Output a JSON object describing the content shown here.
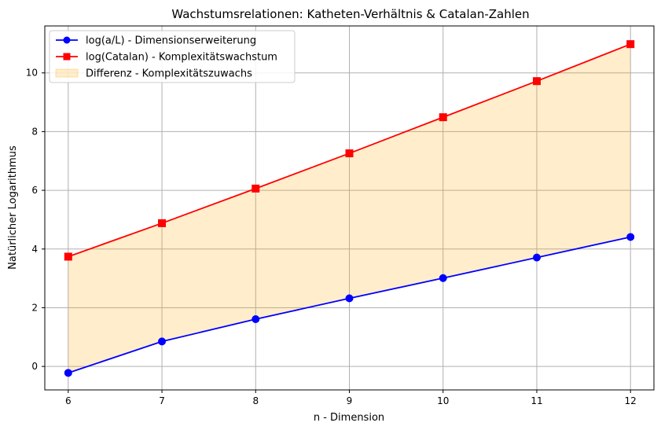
{
  "chart_data": {
    "type": "line",
    "title": "Wachstumsrelationen: Katheten-Verhältnis & Catalan-Zahlen",
    "xlabel": "n - Dimension",
    "ylabel": "Natürlicher Logarithmus",
    "x": [
      6,
      7,
      8,
      9,
      10,
      11,
      12
    ],
    "xlim": [
      5.75,
      12.25
    ],
    "ylim": [
      -0.8,
      11.6
    ],
    "xticks": [
      6,
      7,
      8,
      9,
      10,
      11,
      12
    ],
    "yticks": [
      0,
      2,
      4,
      6,
      8,
      10
    ],
    "grid": true,
    "legend_position": "top-left",
    "series": [
      {
        "name": "log(a/L) - Dimensionserweiterung",
        "color": "#0000ff",
        "marker": "circle",
        "values": [
          -0.22,
          0.85,
          1.61,
          2.32,
          3.01,
          3.71,
          4.41
        ]
      },
      {
        "name": "log(Catalan) - Komplexitätswachstum",
        "color": "#ff0000",
        "marker": "square",
        "values": [
          3.74,
          4.88,
          6.06,
          7.26,
          8.49,
          9.72,
          10.98
        ]
      }
    ],
    "fill": {
      "name": "Differenz - Komplexitätszuwachs",
      "color": "#ffa500",
      "alpha": 0.2
    }
  }
}
